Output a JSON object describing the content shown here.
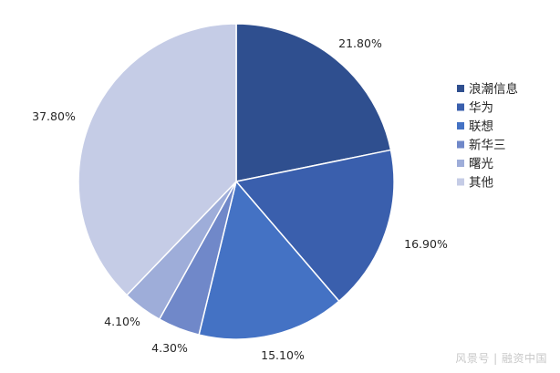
{
  "chart_data": {
    "type": "pie",
    "title": "",
    "slices": [
      {
        "label": "浪潮信息",
        "value": 21.8,
        "display": "21.80%",
        "color": "#2f4f8f"
      },
      {
        "label": "华为",
        "value": 16.9,
        "display": "16.90%",
        "color": "#3a5fad"
      },
      {
        "label": "联想",
        "value": 15.1,
        "display": "15.10%",
        "color": "#4472c4"
      },
      {
        "label": "新华三",
        "value": 4.3,
        "display": "4.30%",
        "color": "#7088c9"
      },
      {
        "label": "曙光",
        "value": 4.1,
        "display": "4.10%",
        "color": "#9eadd9"
      },
      {
        "label": "其他",
        "value": 37.8,
        "display": "37.80%",
        "color": "#c5cce6"
      }
    ],
    "start_angle_deg": 0,
    "direction": "clockwise",
    "legend_position": "right"
  },
  "watermark": "风景号 | 融资中国"
}
